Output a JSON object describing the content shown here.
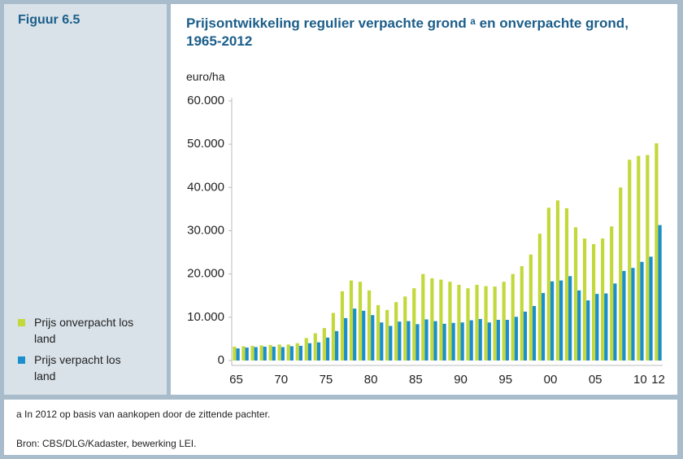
{
  "figure_label": "Figuur 6.5",
  "chart_data": {
    "type": "bar",
    "title": "Prijsontwikkeling regulier verpachte grond ᵃ en onverpachte grond, 1965-2012",
    "y_label": "euro/ha",
    "categories": [
      "65",
      null,
      null,
      null,
      null,
      "70",
      null,
      null,
      null,
      null,
      "75",
      null,
      null,
      null,
      null,
      "80",
      null,
      null,
      null,
      null,
      "85",
      null,
      null,
      null,
      null,
      "90",
      null,
      null,
      null,
      null,
      "95",
      null,
      null,
      null,
      null,
      "00",
      null,
      null,
      null,
      null,
      "05",
      null,
      null,
      null,
      null,
      "10",
      null,
      "12"
    ],
    "series": [
      {
        "name": "Prijs onverpacht los land",
        "color": "#c3d83a",
        "values": [
          3200,
          3300,
          3400,
          3500,
          3600,
          3700,
          3700,
          4000,
          5200,
          6300,
          7500,
          11000,
          16000,
          18500,
          18200,
          16200,
          12800,
          11700,
          13500,
          14800,
          16700,
          20000,
          19000,
          18700,
          18200,
          17500,
          16700,
          17500,
          17200,
          17100,
          18200,
          20000,
          21800,
          24500,
          29300,
          35300,
          37000,
          35200,
          30800,
          28200,
          26900,
          28200,
          31000,
          40000,
          46400,
          47300,
          47500,
          50200
        ]
      },
      {
        "name": "Prijs verpacht los land",
        "color": "#1a8fcc",
        "values": [
          2800,
          3000,
          3100,
          3200,
          3200,
          3100,
          3300,
          3400,
          4000,
          4200,
          5300,
          6800,
          9800,
          12000,
          11500,
          10500,
          8800,
          8000,
          9000,
          9100,
          8400,
          9500,
          9100,
          8500,
          8700,
          8800,
          9300,
          9600,
          8800,
          9400,
          9400,
          10100,
          11300,
          12600,
          15600,
          18300,
          18500,
          19500,
          16200,
          13900,
          15400,
          15500,
          17800,
          20700,
          21400,
          22800,
          24000,
          31300
        ]
      }
    ],
    "ylim": [
      0,
      60000
    ],
    "yticks": [
      0,
      {
        "value": 10000,
        "label": "10.000"
      },
      {
        "value": 20000,
        "label": "20.000"
      },
      {
        "value": 30000,
        "label": "30.000"
      },
      {
        "value": 40000,
        "label": "40.000"
      },
      {
        "value": 50000,
        "label": "50.000"
      },
      {
        "value": 60000,
        "label": "60.000"
      }
    ],
    "grid": false
  },
  "notes": [
    "a   In 2012 op basis van aankopen door de zittende pachter.",
    "Bron: CBS/DLG/Kadaster, bewerking LEI."
  ]
}
